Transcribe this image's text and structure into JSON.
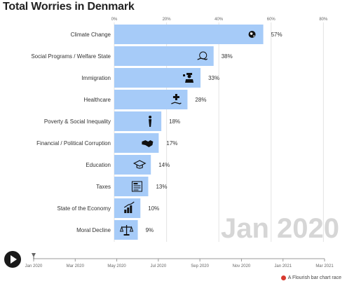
{
  "title": "Total Worries in Denmark",
  "chart_data": {
    "type": "bar",
    "orientation": "horizontal",
    "categories": [
      "Climate Change",
      "Social Programs / Welfare State",
      "Immigration",
      "Healthcare",
      "Poverty & Social Inequality",
      "Financial / Political Corruption",
      "Education",
      "Taxes",
      "State of the Economy",
      "Moral Decline"
    ],
    "values": [
      57,
      38,
      33,
      28,
      18,
      17,
      14,
      13,
      10,
      9
    ],
    "value_labels": [
      "57%",
      "38%",
      "33%",
      "28%",
      "18%",
      "17%",
      "14%",
      "13%",
      "10%",
      "9%"
    ],
    "icons": [
      "globe-icon",
      "hand-holding-coin-icon",
      "officer-icon",
      "hand-medical-cross-icon",
      "person-standing-icon",
      "handshake-icon",
      "graduation-cap-icon",
      "tax-form-icon",
      "rising-bar-chart-icon",
      "scales-icon"
    ],
    "x_ticks": [
      0,
      20,
      40,
      60,
      80
    ],
    "x_tick_labels": [
      "0%",
      "20%",
      "40%",
      "60%",
      "80%"
    ],
    "xlim": [
      0,
      85
    ],
    "gridlines": true,
    "bar_color": "#a6cbf8",
    "current_period": "Jan 2020",
    "timeline_labels": [
      "Jan 2020",
      "Mar 2020",
      "May 2020",
      "Jul 2020",
      "Sep 2020",
      "Nov 2020",
      "Jan 2021",
      "Mar 2021"
    ],
    "timeline_position": 0
  },
  "controls": {
    "play_icon": "play-icon"
  },
  "footer": {
    "credit": "A Flourish bar chart race",
    "dot_color": "#d83a2f"
  }
}
